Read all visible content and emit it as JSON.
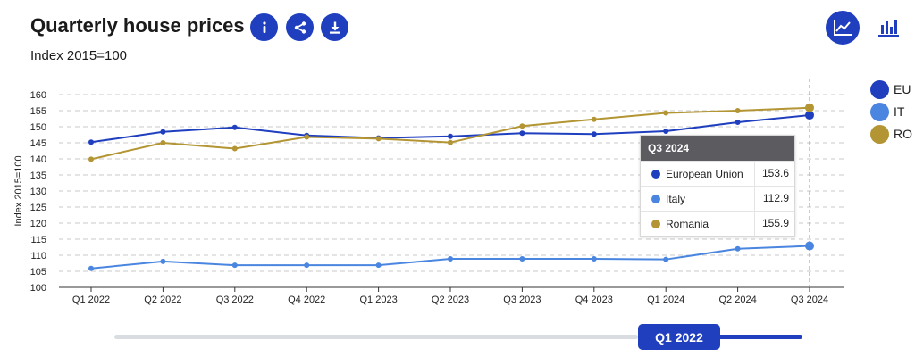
{
  "header": {
    "title": "Quarterly house prices",
    "subtitle": "Index 2015=100"
  },
  "toolbar": {
    "icons": [
      "info-icon",
      "share-icon",
      "download-icon"
    ],
    "chart_type_icons": [
      "line-chart-icon",
      "bar-chart-icon"
    ]
  },
  "legend": [
    {
      "label": "EU",
      "color": "#1f3fbf"
    },
    {
      "label": "IT",
      "color": "#4a86e0"
    },
    {
      "label": "RO",
      "color": "#b39533"
    }
  ],
  "tooltip": {
    "title": "Q3 2024",
    "rows": [
      {
        "name": "European Union",
        "value": "153.6",
        "color": "#1f3fbf"
      },
      {
        "name": "Italy",
        "value": "112.9",
        "color": "#4a86e0"
      },
      {
        "name": "Romania",
        "value": "155.9",
        "color": "#b39533"
      }
    ]
  },
  "slider": {
    "handle_label": "Q1 2022"
  },
  "chart_data": {
    "type": "line",
    "ylabel": "Index 2015=100",
    "ylim": [
      100,
      160
    ],
    "yticks": [
      100,
      105,
      110,
      115,
      120,
      125,
      130,
      135,
      140,
      145,
      150,
      155,
      160
    ],
    "categories": [
      "Q1 2022",
      "Q2 2022",
      "Q3 2022",
      "Q4 2022",
      "Q1 2023",
      "Q2 2023",
      "Q3 2023",
      "Q4 2023",
      "Q1 2024",
      "Q2 2024",
      "Q3 2024"
    ],
    "grid": true,
    "legend_position": "right",
    "series": [
      {
        "name": "EU",
        "color": "#1f3fbf",
        "values": [
          145.2,
          148.4,
          149.8,
          147.3,
          146.5,
          147.0,
          148.0,
          147.7,
          148.6,
          151.4,
          153.6
        ]
      },
      {
        "name": "IT",
        "color": "#4a86e0",
        "values": [
          105.9,
          108.1,
          106.9,
          106.9,
          106.9,
          108.9,
          108.9,
          108.9,
          108.7,
          112.0,
          112.9
        ]
      },
      {
        "name": "RO",
        "color": "#b39533",
        "values": [
          139.9,
          145.0,
          143.2,
          146.8,
          146.3,
          145.1,
          150.2,
          152.3,
          154.3,
          155.0,
          155.9
        ]
      }
    ],
    "highlight_index": 10
  }
}
